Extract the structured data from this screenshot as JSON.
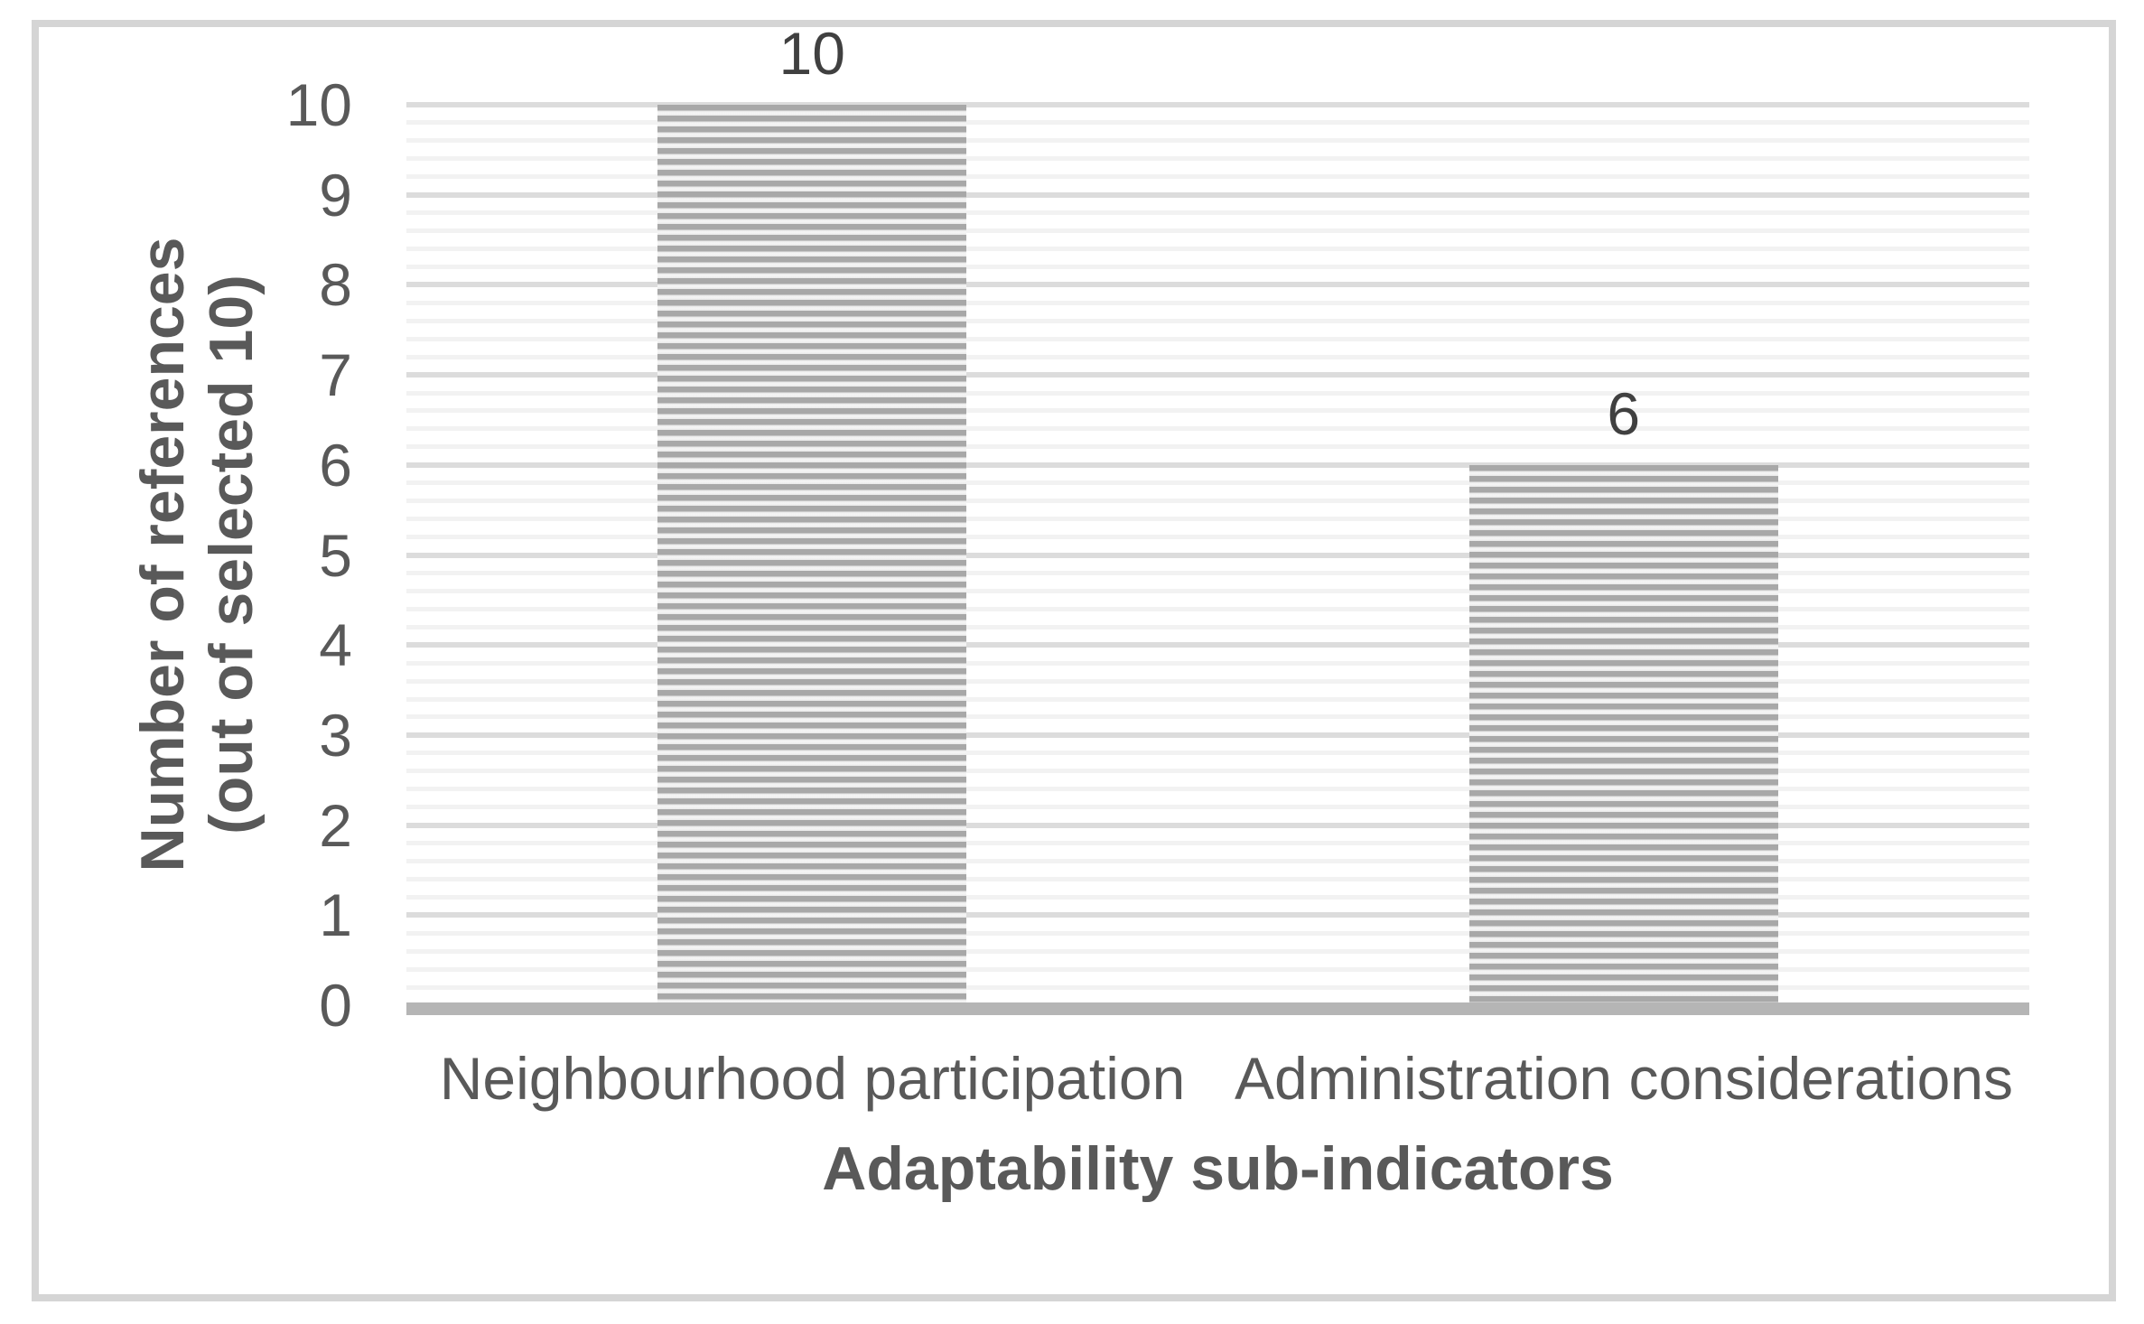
{
  "chart_data": {
    "type": "bar",
    "title": "",
    "categories": [
      "Neighbourhood participation",
      "Administration considerations"
    ],
    "values": [
      10,
      6
    ],
    "bar_labels": [
      "10",
      "6"
    ],
    "xlabel": "Adaptability sub-indicators",
    "ylabel_lines": [
      "Number of references",
      "(out of selected 10)"
    ],
    "yticks": [
      "0",
      "1",
      "2",
      "3",
      "4",
      "5",
      "6",
      "7",
      "8",
      "9",
      "10"
    ],
    "ylim": [
      0,
      10
    ],
    "ytick_interval": 1,
    "minor_grid_interval": 0.2,
    "grid": "horizontal, major and minor",
    "legend": "none",
    "bar_pattern": "horizontal-stripes",
    "colors": {
      "bar_stripe": "#a8a8a8",
      "bar_stripe_gap": "#e9e9e9",
      "major_gridline": "#dcdcdc",
      "minor_gridline": "#f2f2f2",
      "axis_line": "#b5b5b5",
      "tick_text": "#595959",
      "axis_title_text": "#595959",
      "data_label_text": "#404040",
      "frame_border": "#d5d5d5"
    }
  }
}
